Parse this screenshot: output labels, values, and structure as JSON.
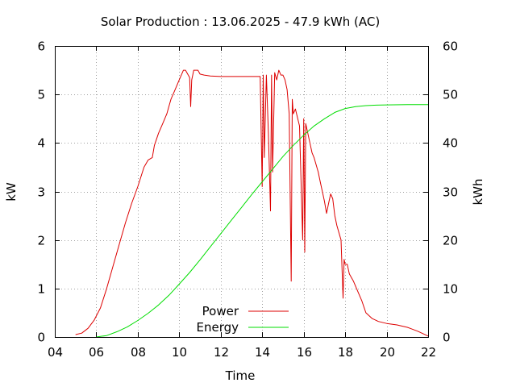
{
  "chart_data": {
    "type": "line",
    "title": "Solar Production : 13.06.2025 - 47.9 kWh (AC)",
    "xlabel": "Time",
    "ylabel": "kW",
    "y2label": "kWh",
    "xlim": [
      4,
      22
    ],
    "ylim": [
      0,
      6
    ],
    "y2lim": [
      0,
      60
    ],
    "x_ticks": [
      "04",
      "06",
      "08",
      "10",
      "12",
      "14",
      "16",
      "18",
      "20",
      "22"
    ],
    "y_ticks": [
      "0",
      "1",
      "2",
      "3",
      "4",
      "5",
      "6"
    ],
    "y2_ticks": [
      "0",
      "10",
      "20",
      "30",
      "40",
      "50",
      "60"
    ],
    "grid": true,
    "legend_position": "bottom-center",
    "colors": {
      "power": "#dd0000",
      "energy": "#00dd00"
    },
    "series": [
      {
        "name": "Power",
        "axis": "left",
        "x": [
          5.0,
          5.3,
          5.6,
          5.9,
          6.2,
          6.5,
          6.8,
          7.1,
          7.4,
          7.7,
          8.0,
          8.3,
          8.5,
          8.7,
          8.8,
          9.0,
          9.2,
          9.4,
          9.6,
          9.8,
          10.0,
          10.1,
          10.2,
          10.3,
          10.5,
          10.55,
          10.6,
          10.7,
          10.9,
          11.0,
          11.2,
          11.5,
          12.0,
          12.5,
          13.0,
          13.5,
          13.9,
          14.0,
          14.05,
          14.1,
          14.2,
          14.3,
          14.4,
          14.45,
          14.5,
          14.6,
          14.7,
          14.8,
          14.9,
          15.0,
          15.1,
          15.2,
          15.3,
          15.4,
          15.45,
          15.5,
          15.6,
          15.8,
          15.95,
          16.0,
          16.05,
          16.1,
          16.2,
          16.3,
          16.4,
          16.5,
          16.6,
          16.7,
          16.8,
          16.9,
          17.0,
          17.1,
          17.2,
          17.3,
          17.4,
          17.5,
          17.6,
          17.8,
          17.9,
          17.95,
          18.0,
          18.1,
          18.2,
          18.4,
          18.6,
          18.8,
          19.0,
          19.3,
          19.6,
          20.0,
          20.5,
          21.0,
          21.5,
          22.0
        ],
        "values": [
          0.05,
          0.08,
          0.18,
          0.35,
          0.6,
          1.0,
          1.45,
          1.9,
          2.35,
          2.75,
          3.1,
          3.5,
          3.65,
          3.7,
          3.95,
          4.2,
          4.4,
          4.6,
          4.9,
          5.1,
          5.3,
          5.4,
          5.5,
          5.5,
          5.35,
          4.75,
          5.3,
          5.5,
          5.5,
          5.42,
          5.4,
          5.38,
          5.37,
          5.37,
          5.37,
          5.37,
          5.37,
          3.1,
          5.4,
          3.7,
          5.4,
          4.2,
          2.6,
          5.4,
          3.4,
          5.45,
          5.3,
          5.5,
          5.4,
          5.4,
          5.3,
          5.1,
          4.6,
          1.15,
          4.9,
          4.6,
          4.7,
          4.35,
          2.0,
          4.5,
          1.75,
          4.4,
          4.2,
          4.0,
          3.8,
          3.7,
          3.55,
          3.4,
          3.2,
          3.0,
          2.8,
          2.55,
          2.75,
          2.95,
          2.85,
          2.5,
          2.3,
          2.0,
          0.8,
          1.6,
          1.5,
          1.5,
          1.3,
          1.15,
          0.95,
          0.75,
          0.5,
          0.38,
          0.32,
          0.28,
          0.25,
          0.2,
          0.12,
          0.02
        ]
      },
      {
        "name": "Energy",
        "axis": "right",
        "x": [
          6.0,
          6.5,
          7.0,
          7.5,
          8.0,
          8.5,
          9.0,
          9.5,
          10.0,
          10.5,
          11.0,
          11.5,
          12.0,
          12.5,
          13.0,
          13.5,
          14.0,
          14.5,
          15.0,
          15.5,
          16.0,
          16.5,
          17.0,
          17.5,
          18.0,
          18.5,
          19.0,
          19.5,
          20.0,
          21.0,
          22.0
        ],
        "values": [
          0.0,
          0.3,
          1.1,
          2.1,
          3.4,
          4.9,
          6.6,
          8.6,
          10.9,
          13.3,
          15.9,
          18.6,
          21.3,
          24.0,
          26.7,
          29.4,
          32.0,
          34.6,
          37.2,
          39.5,
          41.6,
          43.5,
          45.0,
          46.3,
          47.1,
          47.5,
          47.7,
          47.8,
          47.85,
          47.9,
          47.9
        ]
      }
    ]
  }
}
